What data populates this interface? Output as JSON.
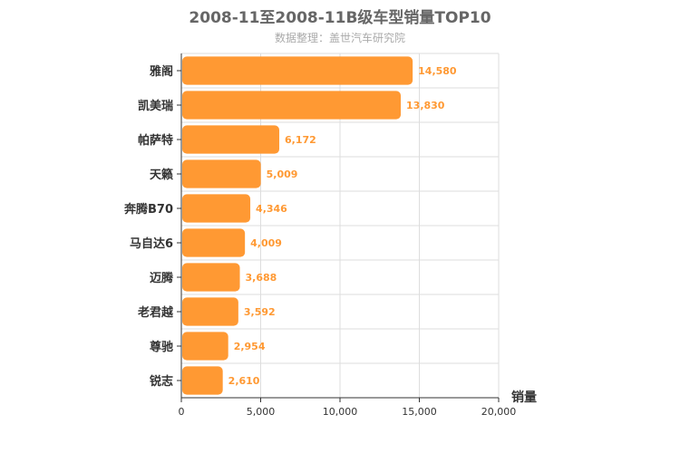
{
  "chart_data": {
    "type": "bar",
    "orientation": "horizontal",
    "title": "2008-11至2008-11B级车型销量TOP10",
    "subtitle": "数据整理：盖世汽车研究院",
    "xlabel": "销量",
    "ylabel": "",
    "categories": [
      "雅阁",
      "凯美瑞",
      "帕萨特",
      "天籁",
      "奔腾B70",
      "马自达6",
      "迈腾",
      "老君越",
      "尊驰",
      "锐志"
    ],
    "values": [
      14580,
      13830,
      6172,
      5009,
      4346,
      4009,
      3688,
      3592,
      2954,
      2610
    ],
    "value_labels": [
      "14,580",
      "13,830",
      "6,172",
      "5,009",
      "4,346",
      "4,009",
      "3,688",
      "3,592",
      "2,954",
      "2,610"
    ],
    "xlim": [
      0,
      20000
    ],
    "ticks": [
      0,
      5000,
      10000,
      15000,
      20000
    ],
    "tick_labels": [
      "0",
      "5,000",
      "10,000",
      "15,000",
      "20,000"
    ],
    "grid": true,
    "bar_color": "#ff9933",
    "label_color": "#ff9933"
  }
}
